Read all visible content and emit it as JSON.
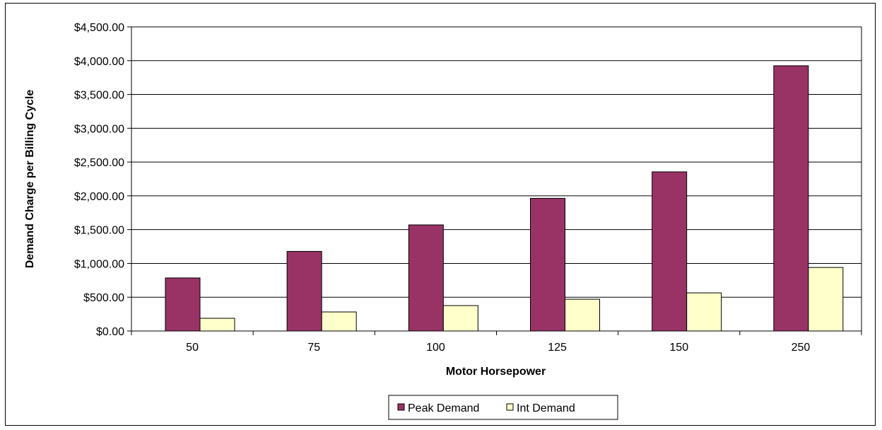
{
  "chart_data": {
    "type": "bar",
    "title": "",
    "xlabel": "Motor Horsepower",
    "ylabel": "Demand Charge per Billing Cycle",
    "categories": [
      "50",
      "75",
      "100",
      "125",
      "150",
      "250"
    ],
    "series": [
      {
        "name": "Peak Demand",
        "color": "#993366",
        "values": [
          785,
          1178,
          1570,
          1963,
          2355,
          3925
        ]
      },
      {
        "name": "Int Demand",
        "color": "#FFFFCC",
        "values": [
          188,
          282,
          376,
          470,
          564,
          940
        ]
      }
    ],
    "ylim": [
      0,
      4500
    ],
    "y_ticks": [
      0,
      500,
      1000,
      1500,
      2000,
      2500,
      3000,
      3500,
      4000,
      4500
    ],
    "y_tick_labels": [
      "$0.00",
      "$500.00",
      "$1,000.00",
      "$1,500.00",
      "$2,000.00",
      "$2,500.00",
      "$3,000.00",
      "$3,500.00",
      "$4,000.00",
      "$4,500.00"
    ],
    "grid": true,
    "legend_position": "bottom"
  }
}
